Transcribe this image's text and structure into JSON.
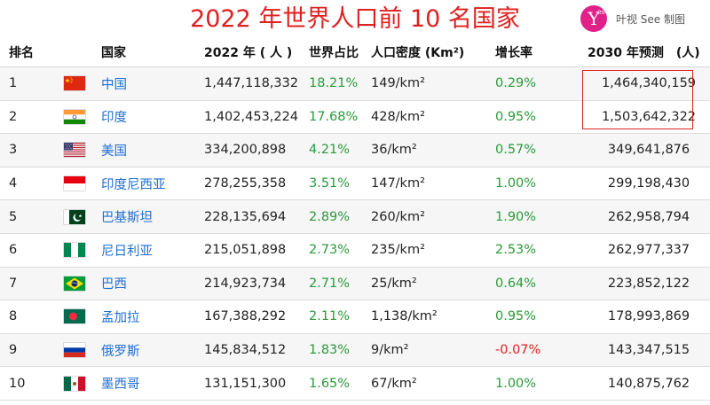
{
  "title": "2022 年世界人口前 10 名国家",
  "brand": {
    "logo_letter": "Y",
    "logo_small": "es",
    "text": "叶视 See 制图",
    "accent": "#e0218a"
  },
  "headers": {
    "rank": "排名",
    "country": "国家",
    "pop2022": "2022 年 ( 人 )",
    "share": "世界占比",
    "density": "人口密度 (Km²)",
    "growth": "增长率",
    "proj2030": "2030 年预测　(人)"
  },
  "rows": [
    {
      "rank": "1",
      "flag": "china-flag-icon",
      "country": "中国",
      "pop2022": "1,447,118,332",
      "share": "18.21%",
      "density": "149/km²",
      "growth": "0.29%",
      "proj2030": "1,464,340,159"
    },
    {
      "rank": "2",
      "flag": "india-flag-icon",
      "country": "印度",
      "pop2022": "1,402,453,224",
      "share": "17.68%",
      "density": "428/km²",
      "growth": "0.95%",
      "proj2030": "1,503,642,322"
    },
    {
      "rank": "3",
      "flag": "usa-flag-icon",
      "country": "美国",
      "pop2022": "334,200,898",
      "share": "4.21%",
      "density": "36/km²",
      "growth": "0.57%",
      "proj2030": "349,641,876"
    },
    {
      "rank": "4",
      "flag": "indonesia-flag-icon",
      "country": "印度尼西亚",
      "pop2022": "278,255,358",
      "share": "3.51%",
      "density": "147/km²",
      "growth": "1.00%",
      "proj2030": "299,198,430"
    },
    {
      "rank": "5",
      "flag": "pakistan-flag-icon",
      "country": "巴基斯坦",
      "pop2022": "228,135,694",
      "share": "2.89%",
      "density": "260/km²",
      "growth": "1.90%",
      "proj2030": "262,958,794"
    },
    {
      "rank": "6",
      "flag": "nigeria-flag-icon",
      "country": "尼日利亚",
      "pop2022": "215,051,898",
      "share": "2.73%",
      "density": "235/km²",
      "growth": "2.53%",
      "proj2030": "262,977,337"
    },
    {
      "rank": "7",
      "flag": "brazil-flag-icon",
      "country": "巴西",
      "pop2022": "214,923,734",
      "share": "2.71%",
      "density": "25/km²",
      "growth": "0.64%",
      "proj2030": "223,852,122"
    },
    {
      "rank": "8",
      "flag": "bangladesh-flag-icon",
      "country": "孟加拉",
      "pop2022": "167,388,292",
      "share": "2.11%",
      "density": "1,138/km²",
      "growth": "0.95%",
      "proj2030": "178,993,869"
    },
    {
      "rank": "9",
      "flag": "russia-flag-icon",
      "country": "俄罗斯",
      "pop2022": "145,834,512",
      "share": "1.83%",
      "density": "9/km²",
      "growth": "-0.07%",
      "proj2030": "143,347,515"
    },
    {
      "rank": "10",
      "flag": "mexico-flag-icon",
      "country": "墨西哥",
      "pop2022": "131,151,300",
      "share": "1.65%",
      "density": "67/km²",
      "growth": "1.00%",
      "proj2030": "140,875,762"
    }
  ],
  "colors": {
    "title": "#e02020",
    "country_link": "#1f6fd1",
    "positive": "#2a9a3a",
    "negative": "#e02020",
    "highlight_box": "#e02020"
  }
}
